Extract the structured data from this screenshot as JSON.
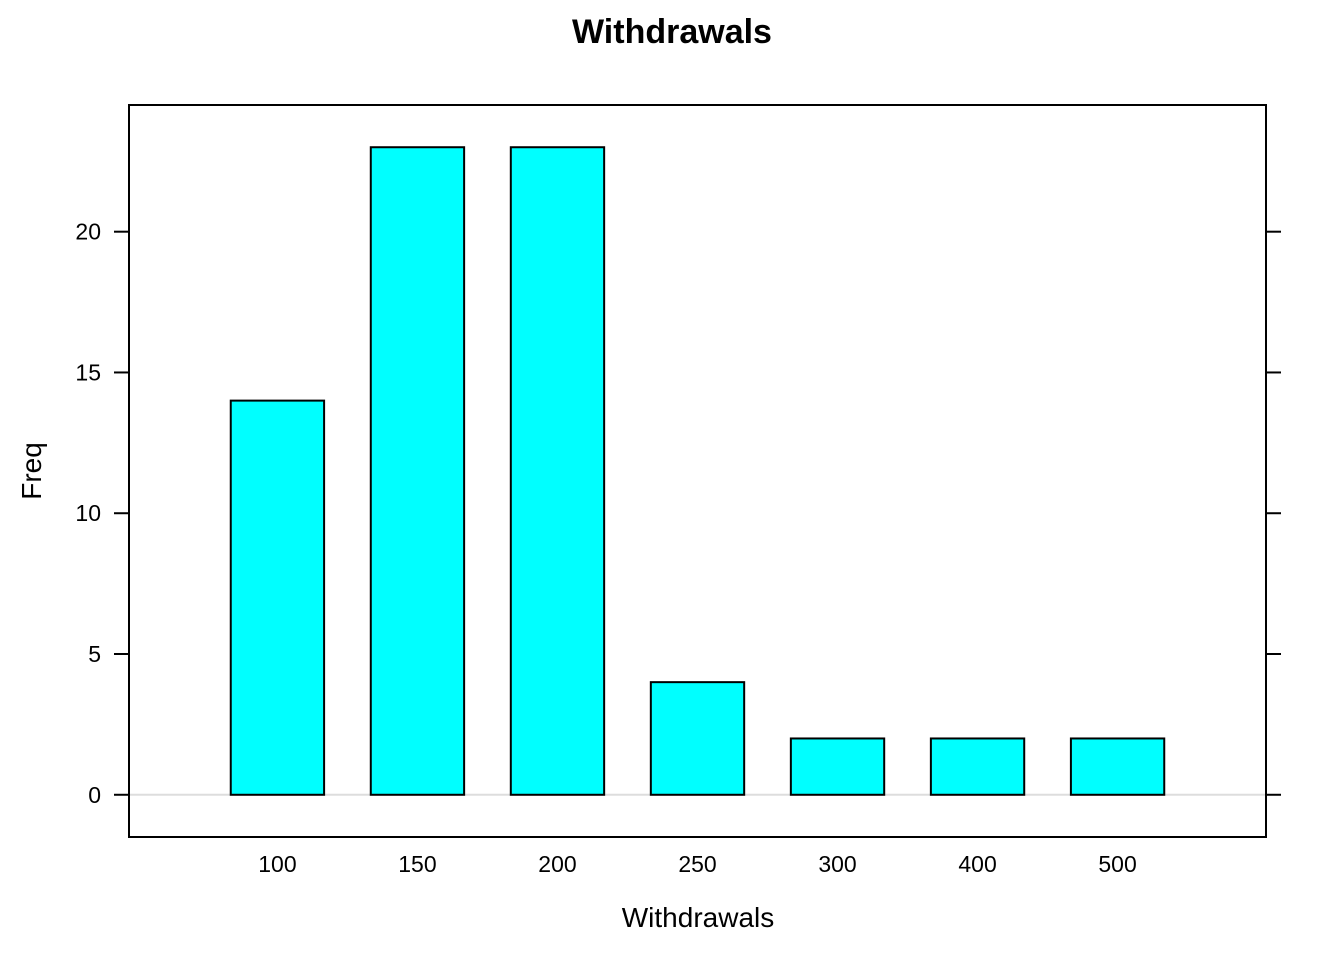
{
  "chart_data": {
    "type": "bar",
    "title": "Withdrawals",
    "xlabel": "Withdrawals",
    "ylabel": "Freq",
    "categories": [
      "100",
      "150",
      "200",
      "250",
      "300",
      "400",
      "500"
    ],
    "values": [
      14,
      23,
      23,
      4,
      2,
      2,
      2
    ],
    "yticks": [
      0,
      5,
      10,
      15,
      20
    ],
    "ylim": [
      -1.5,
      24.5
    ],
    "grid": false,
    "bar_color": "#00FFFF",
    "bar_stroke": "#000000",
    "reference_line_color": "#DDDDDD"
  }
}
